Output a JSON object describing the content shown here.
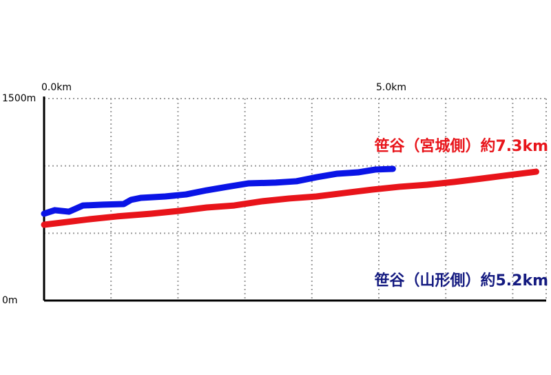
{
  "chart_data": {
    "type": "line",
    "series": [
      {
        "name": "笹谷（宮城側）約7.3km",
        "color": "#e8141a",
        "label_color": "#e8141a",
        "x": [
          0,
          0.27,
          0.68,
          1.09,
          1.6,
          2.02,
          2.43,
          2.84,
          3.25,
          3.66,
          4.07,
          4.49,
          4.9,
          5.31,
          5.72,
          6.13,
          6.54,
          6.95,
          7.35
        ],
        "values": [
          563,
          579,
          604,
          625,
          645,
          666,
          691,
          706,
          737,
          758,
          773,
          799,
          824,
          845,
          860,
          881,
          906,
          932,
          957
        ]
      },
      {
        "name": "笹谷（山形側）約5.2km",
        "color": "#0a14e6",
        "label_color": "#141a80",
        "x": [
          0,
          0.16,
          0.37,
          0.58,
          0.88,
          1.19,
          1.3,
          1.45,
          1.81,
          2.12,
          2.43,
          2.74,
          3.05,
          3.46,
          3.77,
          4.07,
          4.38,
          4.69,
          4.95,
          5.21
        ],
        "values": [
          645,
          671,
          660,
          706,
          712,
          717,
          748,
          763,
          773,
          788,
          819,
          845,
          870,
          876,
          886,
          916,
          942,
          952,
          973,
          978
        ]
      }
    ],
    "xlim": [
      0,
      7.5
    ],
    "xticks": [
      {
        "value": 0,
        "label": "0.0km"
      },
      {
        "value": 1,
        "label": null
      },
      {
        "value": 2,
        "label": null
      },
      {
        "value": 3,
        "label": null
      },
      {
        "value": 4,
        "label": null
      },
      {
        "value": 5,
        "label": "5.0km"
      },
      {
        "value": 6,
        "label": null
      },
      {
        "value": 7,
        "label": null
      }
    ],
    "ylim": [
      0,
      1500
    ],
    "yticks": [
      {
        "value": 0,
        "label": "0m"
      },
      {
        "value": 500,
        "label": null
      },
      {
        "value": 1000,
        "label": null
      },
      {
        "value": 1500,
        "label": "1500m"
      }
    ],
    "grid": true
  }
}
